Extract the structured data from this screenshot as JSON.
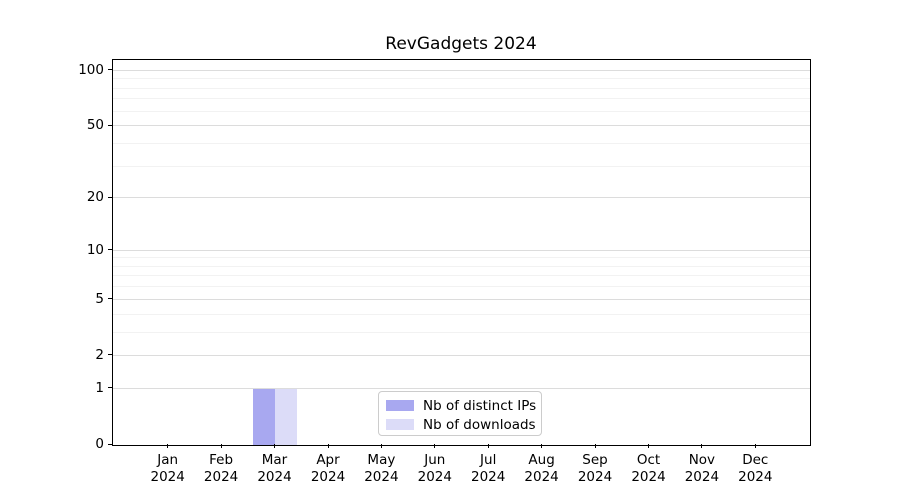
{
  "chart_data": {
    "type": "bar",
    "title": "RevGadgets 2024",
    "categories": [
      "Jan",
      "Feb",
      "Mar",
      "Apr",
      "May",
      "Jun",
      "Jul",
      "Aug",
      "Sep",
      "Oct",
      "Nov",
      "Dec"
    ],
    "x_tick_year": "2024",
    "series": [
      {
        "name": "Nb of distinct IPs",
        "color": "#a8a8f0",
        "values": [
          0,
          0,
          1,
          0,
          0,
          0,
          0,
          0,
          0,
          0,
          0,
          0
        ]
      },
      {
        "name": "Nb of downloads",
        "color": "#dcdcf8",
        "values": [
          0,
          0,
          1,
          0,
          0,
          0,
          0,
          0,
          0,
          0,
          0,
          0
        ]
      }
    ],
    "y_scale": "log1p",
    "y_max": 113,
    "y_ticks": [
      0,
      1,
      2,
      5,
      10,
      20,
      50,
      100
    ],
    "y_minor_ticks": [
      3,
      4,
      6,
      7,
      8,
      9,
      30,
      40,
      60,
      70,
      80,
      90
    ],
    "grid": {
      "major_color": "#dcdcdc",
      "minor_color": "#f2f2f2",
      "horizontal": true
    },
    "legend": {
      "position": "lower center"
    },
    "axis_color": "#000000",
    "text_color": "#000000",
    "background_color": "#ffffff"
  }
}
